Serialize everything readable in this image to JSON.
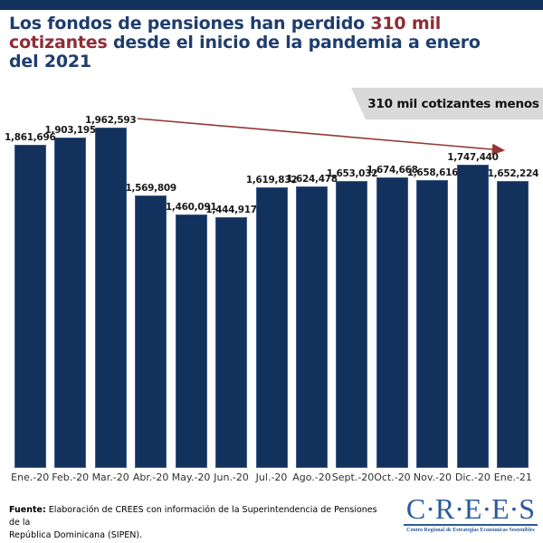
{
  "title": {
    "part1": "Los fondos de pensiones han perdido ",
    "highlight": "310 mil cotizantes",
    "part2": " desde el inicio de la pandemia a enero del 2021"
  },
  "callout": {
    "text": "310 mil cotizantes menos"
  },
  "chart_data": {
    "type": "bar",
    "categories": [
      "Ene.-20",
      "Feb.-20",
      "Mar.-20",
      "Abr.-20",
      "May.-20",
      "Jun.-20",
      "Jul.-20",
      "Ago.-20",
      "Sept.-20",
      "Oct.-20",
      "Nov.-20",
      "Dic.-20",
      "Ene.-21"
    ],
    "values": [
      1861696,
      1903195,
      1962593,
      1569809,
      1460091,
      1444917,
      1619832,
      1624478,
      1653032,
      1674668,
      1658616,
      1747440,
      1652224
    ],
    "value_labels": [
      "1,861,696",
      "1,903,195",
      "1,962,593",
      "1,569,809",
      "1,460,091",
      "1,444,917",
      "1,619,832",
      "1,624,478",
      "1,653,032",
      "1,674,668",
      "1,658,616",
      "1,747,440",
      "1,652,224"
    ],
    "title": "Los fondos de pensiones han perdido 310 mil cotizantes desde el inicio de la pandemia a enero del 2021",
    "xlabel": "",
    "ylabel": "",
    "ylim": [
      0,
      1962593
    ],
    "grid": false,
    "legend": false,
    "bar_color": "#12315c",
    "annotation": "310 mil cotizantes menos",
    "trend_arrow": {
      "from_category": "Mar.-20",
      "to_category": "Ene.-21",
      "color": "#943735"
    }
  },
  "footer": {
    "source_label": "Fuente:",
    "source_line1": " Elaboración de CREES con información de la Superintendencia de Pensiones de la",
    "source_line2": "República Dominicana (SIPEN)."
  },
  "logo": {
    "wordmark": "C·R·E·E·S",
    "tagline": "Centro Regional de Estrategias Económicas Sostenibles"
  },
  "colors": {
    "banner_navy": "#12315c",
    "title_blue": "#1e3d6d",
    "accent_red": "#8e2d35",
    "arrow_red": "#943735",
    "callout_bg": "#d9d9d9",
    "logo_blue": "#2b5b9b"
  }
}
